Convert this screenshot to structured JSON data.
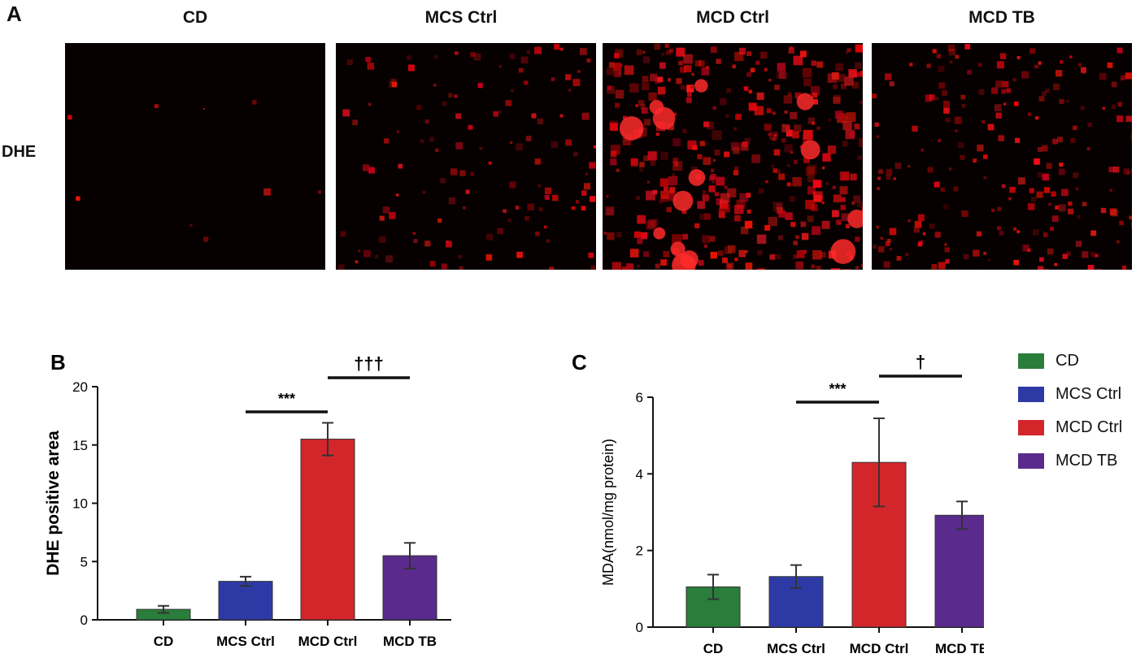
{
  "panel_a": {
    "letter": "A",
    "row_label": "DHE",
    "columns": [
      "CD",
      "MCS Ctrl",
      "MCD Ctrl",
      "MCD TB"
    ],
    "signal_level": [
      0.02,
      0.3,
      0.9,
      0.5
    ]
  },
  "legend": {
    "items": [
      {
        "label": "CD",
        "color": "#2a7d3a"
      },
      {
        "label": "MCS Ctrl",
        "color": "#2d3aa6"
      },
      {
        "label": "MCD Ctrl",
        "color": "#d3262b"
      },
      {
        "label": "MCD TB",
        "color": "#5a2a8c"
      }
    ]
  },
  "chart_data": [
    {
      "panel": "B",
      "type": "bar",
      "categories": [
        "CD",
        "MCS Ctrl",
        "MCD Ctrl",
        "MCD TB"
      ],
      "values": [
        0.9,
        3.3,
        15.5,
        5.5
      ],
      "errors": [
        0.3,
        0.4,
        1.4,
        1.1
      ],
      "colors": [
        "#2a7d3a",
        "#2d3aa6",
        "#d3262b",
        "#5a2a8c"
      ],
      "ylabel": "DHE positive area",
      "ylim": [
        0,
        20
      ],
      "yticks": [
        0,
        5,
        10,
        15,
        20
      ],
      "significance": [
        {
          "from": 1,
          "to": 2,
          "label": "***"
        },
        {
          "from": 2,
          "to": 3,
          "label": "†††"
        }
      ]
    },
    {
      "panel": "C",
      "type": "bar",
      "categories": [
        "CD",
        "MCS Ctrl",
        "MCD Ctrl",
        "MCD TB"
      ],
      "values": [
        1.05,
        1.32,
        4.3,
        2.92
      ],
      "errors": [
        0.32,
        0.3,
        1.15,
        0.36
      ],
      "colors": [
        "#2a7d3a",
        "#2d3aa6",
        "#d3262b",
        "#5a2a8c"
      ],
      "ylabel": "MDA(nmol/mg protein)",
      "ylim": [
        0,
        6
      ],
      "yticks": [
        0,
        2,
        4,
        6
      ],
      "significance": [
        {
          "from": 1,
          "to": 2,
          "label": "***"
        },
        {
          "from": 2,
          "to": 3,
          "label": "†"
        }
      ]
    }
  ]
}
